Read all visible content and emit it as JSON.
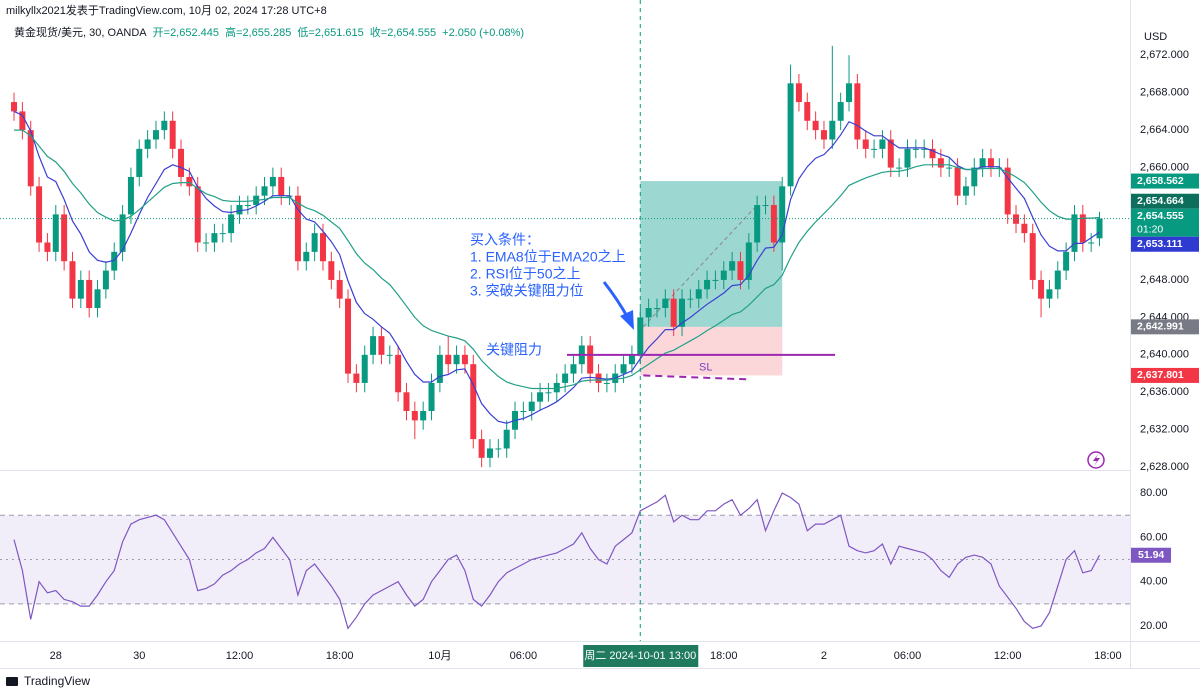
{
  "chart_data": [
    {
      "type": "candlestick",
      "title": "milkyllx2021发表于TradingView.com, 10月 02, 2024 17:28 UTC+8",
      "symbol": "黄金现货/美元, 30, OANDA",
      "ohlc_legend": [
        "开=2,652.445",
        "高=2,655.285",
        "低=2,651.615",
        "收=2,654.555",
        "+2.050 (+0.08%)"
      ],
      "currency": "USD",
      "footer": "TradingView",
      "open": [
        2667,
        2666,
        2664,
        2658,
        2652,
        2651,
        2655,
        2650,
        2646,
        2648,
        2645,
        2647,
        2649,
        2651,
        2655,
        2659,
        2662,
        2663,
        2664,
        2665,
        2662,
        2659,
        2658,
        2652,
        2652,
        2653,
        2653,
        2655,
        2656,
        2656,
        2657,
        2658,
        2659,
        2657,
        2657,
        2650,
        2651,
        2653,
        2650,
        2648,
        2646,
        2638,
        2637,
        2640,
        2642,
        2640,
        2640,
        2636,
        2634,
        2633,
        2634,
        2637,
        2640,
        2639,
        2640,
        2639,
        2631,
        2629,
        2630,
        2630,
        2632,
        2634,
        2634,
        2635,
        2636,
        2636,
        2637,
        2638,
        2639,
        2641,
        2638,
        2637,
        2637,
        2638,
        2639,
        2640,
        2644,
        2645,
        2645,
        2646,
        2643,
        2646,
        2646,
        2647,
        2648,
        2648,
        2649,
        2650,
        2648,
        2652,
        2656,
        2656,
        2652,
        2658,
        2669,
        2667,
        2665,
        2664,
        2663,
        2665,
        2667,
        2669,
        2663,
        2662,
        2662,
        2663,
        2660,
        2660,
        2662,
        2662,
        2662,
        2661,
        2660,
        2660,
        2657,
        2658,
        2660,
        2661,
        2660,
        2660,
        2655,
        2654,
        2653,
        2648,
        2646,
        2647,
        2649,
        2651,
        2655,
        2652,
        2652.445
      ],
      "high": [
        2668,
        2667,
        2665,
        2659,
        2653,
        2656,
        2656,
        2651,
        2649,
        2649,
        2648,
        2650,
        2652,
        2656,
        2660,
        2663,
        2664,
        2665,
        2666,
        2666,
        2663,
        2660,
        2659,
        2653,
        2654,
        2654,
        2656,
        2657,
        2657,
        2658,
        2659,
        2660,
        2660,
        2658,
        2658,
        2652,
        2654,
        2654,
        2651,
        2649,
        2647,
        2639,
        2641,
        2643,
        2643,
        2641,
        2641,
        2637,
        2635,
        2635,
        2638,
        2641,
        2642,
        2641,
        2641,
        2640,
        2632,
        2631,
        2631,
        2633,
        2635,
        2635,
        2636,
        2637,
        2637,
        2638,
        2639,
        2640,
        2642,
        2642,
        2639,
        2638,
        2639,
        2640,
        2641,
        2645,
        2646,
        2646,
        2647,
        2647,
        2647,
        2647,
        2648,
        2649,
        2649,
        2650,
        2651,
        2651,
        2653,
        2657,
        2657,
        2657,
        2659,
        2671,
        2670,
        2668,
        2666,
        2665,
        2673,
        2668,
        2672,
        2670,
        2664,
        2663,
        2664,
        2664,
        2661,
        2663,
        2663,
        2663,
        2663,
        2662,
        2661,
        2661,
        2659,
        2661,
        2662,
        2662,
        2661,
        2661,
        2656,
        2655,
        2654,
        2649,
        2648,
        2650,
        2652,
        2656,
        2656,
        2653,
        2655.285
      ],
      "low": [
        2665,
        2663,
        2657,
        2651,
        2650,
        2650,
        2649,
        2645,
        2645,
        2644,
        2644,
        2646,
        2648,
        2650,
        2654,
        2658,
        2661,
        2662,
        2663,
        2661,
        2658,
        2657,
        2651,
        2651,
        2651,
        2652,
        2652,
        2654,
        2655,
        2655,
        2656,
        2657,
        2656,
        2656,
        2649,
        2649,
        2650,
        2649,
        2647,
        2645,
        2637,
        2636,
        2636,
        2639,
        2639,
        2639,
        2635,
        2633,
        2631,
        2632,
        2633,
        2636,
        2638,
        2638,
        2638,
        2630,
        2628,
        2628,
        2629,
        2629,
        2631,
        2633,
        2633,
        2634,
        2635,
        2635,
        2636,
        2637,
        2638,
        2637,
        2636,
        2636,
        2636,
        2637,
        2638,
        2639,
        2643,
        2644,
        2644,
        2642,
        2642,
        2645,
        2645,
        2646,
        2647,
        2647,
        2648,
        2647,
        2647,
        2651,
        2655,
        2651,
        2649,
        2657,
        2666,
        2664,
        2663,
        2662,
        2662,
        2664,
        2666,
        2662,
        2661,
        2661,
        2661,
        2659,
        2659,
        2659,
        2661,
        2661,
        2660,
        2659,
        2659,
        2656,
        2656,
        2657,
        2659,
        2659,
        2659,
        2654,
        2653,
        2652,
        2647,
        2644,
        2645,
        2646,
        2648,
        2650,
        2651,
        2651,
        2651.615
      ],
      "close": [
        2666,
        2664,
        2658,
        2652,
        2651,
        2655,
        2650,
        2646,
        2648,
        2645,
        2647,
        2649,
        2651,
        2655,
        2659,
        2662,
        2663,
        2664,
        2665,
        2662,
        2659,
        2658,
        2652,
        2652,
        2653,
        2653,
        2655,
        2656,
        2656,
        2657,
        2658,
        2659,
        2657,
        2657,
        2650,
        2651,
        2653,
        2650,
        2648,
        2646,
        2638,
        2637,
        2640,
        2642,
        2640,
        2640,
        2636,
        2634,
        2633,
        2634,
        2637,
        2640,
        2639,
        2640,
        2639,
        2631,
        2629,
        2630,
        2630,
        2632,
        2634,
        2634,
        2635,
        2636,
        2636,
        2637,
        2638,
        2639,
        2641,
        2638,
        2637,
        2637,
        2638,
        2639,
        2640,
        2644,
        2645,
        2645,
        2646,
        2643,
        2646,
        2646,
        2647,
        2648,
        2648,
        2649,
        2650,
        2648,
        2652,
        2656,
        2656,
        2652,
        2658,
        2669,
        2667,
        2665,
        2664,
        2663,
        2665,
        2667,
        2669,
        2663,
        2662,
        2662,
        2663,
        2660,
        2660,
        2662,
        2662,
        2662,
        2661,
        2660,
        2660,
        2657,
        2658,
        2660,
        2661,
        2660,
        2660,
        2655,
        2654,
        2653,
        2648,
        2646,
        2647,
        2649,
        2651,
        2655,
        2652,
        2652,
        2654.555
      ],
      "up_color": "#089981",
      "down_color": "#f23645",
      "series": [
        {
          "color": "#3b3fd1",
          "values": [
            2666,
            2665.6,
            2663.9,
            2661.2,
            2659.0,
            2658.5,
            2656.6,
            2654.3,
            2652.9,
            2651.0,
            2650.1,
            2649.9,
            2650.1,
            2651.2,
            2653.0,
            2655.0,
            2656.8,
            2658.3,
            2659.8,
            2660.3,
            2660.0,
            2659.6,
            2657.9,
            2656.7,
            2655.9,
            2655.3,
            2655.2,
            2655.4,
            2655.5,
            2655.9,
            2656.4,
            2657.0,
            2657.0,
            2657.0,
            2655.5,
            2654.5,
            2654.2,
            2653.2,
            2652.1,
            2650.7,
            2647.9,
            2645.6,
            2644.4,
            2643.8,
            2643.0,
            2642.3,
            2640.9,
            2639.3,
            2637.9,
            2637.1,
            2637.1,
            2637.7,
            2637.9,
            2638.4,
            2638.5,
            2636.8,
            2634.8,
            2633.7,
            2632.9,
            2632.7,
            2633.0,
            2633.2,
            2633.6,
            2634.1,
            2634.5,
            2635.0,
            2635.7,
            2636.5,
            2637.5,
            2637.6,
            2637.5,
            2637.4,
            2637.5,
            2637.9,
            2638.3,
            2639.6,
            2640.8,
            2641.7,
            2642.7,
            2642.7,
            2643.4,
            2644.0,
            2644.7,
            2645.4,
            2646.0,
            2646.6,
            2647.4,
            2647.5,
            2648.5,
            2650.1,
            2651.4,
            2651.5,
            2652.8,
            2656.6,
            2658.8,
            2660.1,
            2661.0,
            2661.4,
            2662.3,
            2663.5,
            2664.9,
            2664.5,
            2663.9,
            2663.4,
            2663.4,
            2662.7,
            2662.1,
            2662.1,
            2662.1,
            2662.1,
            2661.8,
            2661.4,
            2661.1,
            2660.2,
            2659.8,
            2659.8,
            2660.1,
            2660.1,
            2660.1,
            2658.9,
            2657.8,
            2656.7,
            2654.7,
            2652.8,
            2651.6,
            2651.1,
            2651.1,
            2651.9,
            2651.9,
            2652.5,
            2653.111
          ]
        },
        {
          "color": "#22a087",
          "values": [
            2664,
            2664,
            2663.4,
            2662.3,
            2661.2,
            2660.6,
            2659.6,
            2658.3,
            2657.3,
            2656.1,
            2655.2,
            2654.7,
            2654.3,
            2654.4,
            2654.8,
            2655.5,
            2656.3,
            2657.1,
            2657.9,
            2658.3,
            2658.4,
            2658.4,
            2657.8,
            2657.2,
            2656.9,
            2656.5,
            2656.4,
            2656.4,
            2656.4,
            2656.5,
            2656.6,
            2656.8,
            2656.8,
            2656.8,
            2656.2,
            2655.7,
            2655.4,
            2654.9,
            2654.2,
            2653.5,
            2652.2,
            2650.8,
            2649.8,
            2649.1,
            2648.2,
            2647.5,
            2646.4,
            2645.2,
            2644.0,
            2643.1,
            2642.6,
            2642.3,
            2642.0,
            2641.8,
            2641.5,
            2640.6,
            2639.4,
            2638.5,
            2637.7,
            2637.1,
            2636.8,
            2636.6,
            2636.4,
            2636.4,
            2636.4,
            2636.4,
            2636.6,
            2636.8,
            2637.2,
            2637.3,
            2637.3,
            2637.3,
            2637.4,
            2637.5,
            2637.8,
            2638.4,
            2639.0,
            2639.6,
            2640.2,
            2640.5,
            2641.0,
            2641.5,
            2642.0,
            2642.6,
            2643.1,
            2643.7,
            2644.3,
            2644.6,
            2645.3,
            2646.2,
            2647.1,
            2647.5,
            2648.5,
            2650.4,
            2652.0,
            2653.2,
            2654.2,
            2655.1,
            2656.0,
            2657.0,
            2658.1,
            2658.5,
            2658.9,
            2659.2,
            2659.5,
            2659.6,
            2659.6,
            2659.8,
            2660.1,
            2660.3,
            2660.3,
            2660.3,
            2660.3,
            2660.0,
            2659.8,
            2659.8,
            2659.9,
            2659.9,
            2659.9,
            2659.5,
            2659.0,
            2658.4,
            2657.4,
            2656.3,
            2655.4,
            2654.8,
            2654.5,
            2654.5,
            2654.6,
            2654.6,
            2654.664
          ]
        }
      ],
      "xlim": [
        -1.68,
        133.65
      ],
      "ylim": [
        2627.7,
        2677.9
      ],
      "yticks": [
        {
          "value": 2628,
          "label": "2,628.000"
        },
        {
          "value": 2632,
          "label": "2,632.000"
        },
        {
          "value": 2636,
          "label": "2,636.000"
        },
        {
          "value": 2640,
          "label": "2,640.000"
        },
        {
          "value": 2644,
          "label": "2,644.000"
        },
        {
          "value": 2648,
          "label": "2,648.000"
        },
        {
          "value": 2652,
          "label": "2,652.000"
        },
        {
          "value": 2656,
          "label": "2,656.000"
        },
        {
          "value": 2660,
          "label": "2,660.000"
        },
        {
          "value": 2664,
          "label": "2,664.000"
        },
        {
          "value": 2668,
          "label": "2,668.000"
        },
        {
          "value": 2672,
          "label": "2,672.000"
        }
      ],
      "xticks": [
        {
          "value": 5,
          "label": "28"
        },
        {
          "value": 15,
          "label": "30"
        },
        {
          "value": 27,
          "label": "12:00"
        },
        {
          "value": 39,
          "label": "18:00"
        },
        {
          "value": 51,
          "label": "10月"
        },
        {
          "value": 61,
          "label": "06:00"
        },
        {
          "value": 85,
          "label": "18:00"
        },
        {
          "value": 97,
          "label": "2"
        },
        {
          "value": 107,
          "label": "06:00"
        },
        {
          "value": 119,
          "label": "12:00"
        },
        {
          "value": 131,
          "label": "18:00"
        }
      ],
      "crosshair": {
        "value": 75,
        "label": "周二 2024-10-01   13:00"
      },
      "grid": false,
      "price_tags": [
        {
          "value": 2658.562,
          "label": "2,658.562",
          "color": "#089981"
        },
        {
          "value": 2654.664,
          "label": "2,654.664",
          "color": "#0e6e5c"
        },
        {
          "value": 2654.555,
          "label": "2,654.555",
          "color": "#089981",
          "countdown": "01:20"
        },
        {
          "value": 2653.111,
          "label": "2,653.111",
          "color": "#2f3bd0"
        },
        {
          "value": 2642.991,
          "label": "2,642.991",
          "color": "#787b86"
        },
        {
          "value": 2637.801,
          "label": "2,637.801",
          "color": "#f23645"
        }
      ],
      "position": {
        "target": 2658.562,
        "entry": 2642.991,
        "stop": 2637.801
      },
      "resistance": 2640,
      "annotations": {
        "conditions_title": "买入条件：",
        "conditions": [
          "1. EMA8位于EMA20之上",
          "2. RSI位于50之上",
          "3. 突破关键阻力位"
        ],
        "resistance_label": "关键阻力",
        "stop_label": "SL"
      }
    },
    {
      "type": "line",
      "color": "#7e57c2",
      "values": [
        59,
        45,
        23,
        40,
        35,
        36,
        32,
        31,
        29,
        29,
        34,
        40,
        45,
        58,
        66,
        68,
        69,
        70,
        68,
        62,
        56,
        50,
        36,
        37,
        39,
        43,
        45,
        48,
        50,
        53,
        55,
        60,
        55,
        50,
        34,
        45,
        48,
        43,
        38,
        32,
        19,
        24,
        30,
        34,
        36,
        38,
        40,
        34,
        29,
        32,
        40,
        45,
        50,
        52,
        45,
        32,
        29,
        34,
        40,
        44,
        46,
        48,
        50,
        51,
        52,
        53,
        55,
        57,
        62,
        55,
        50,
        48,
        56,
        59,
        62,
        72,
        74,
        76,
        79,
        67,
        70,
        68,
        68,
        72,
        72,
        75,
        77,
        70,
        73,
        77,
        63,
        72,
        80,
        78,
        75,
        63,
        66,
        66,
        68,
        70,
        56,
        54,
        53,
        54,
        57,
        48,
        56,
        55,
        54,
        53,
        50,
        45,
        42,
        48,
        51,
        52,
        51,
        48,
        38,
        33,
        28,
        22,
        19,
        20,
        26,
        38,
        50,
        54,
        44,
        45,
        51.94
      ],
      "xlim": [
        -1.68,
        133.65
      ],
      "ylim": [
        13.7,
        89.5
      ],
      "yticks": [
        {
          "value": 20,
          "label": "20.00"
        },
        {
          "value": 40,
          "label": "40.00"
        },
        {
          "value": 60,
          "label": "60.00"
        },
        {
          "value": 80,
          "label": "80.00"
        }
      ],
      "bands": [
        70,
        50,
        30
      ]
    }
  ]
}
